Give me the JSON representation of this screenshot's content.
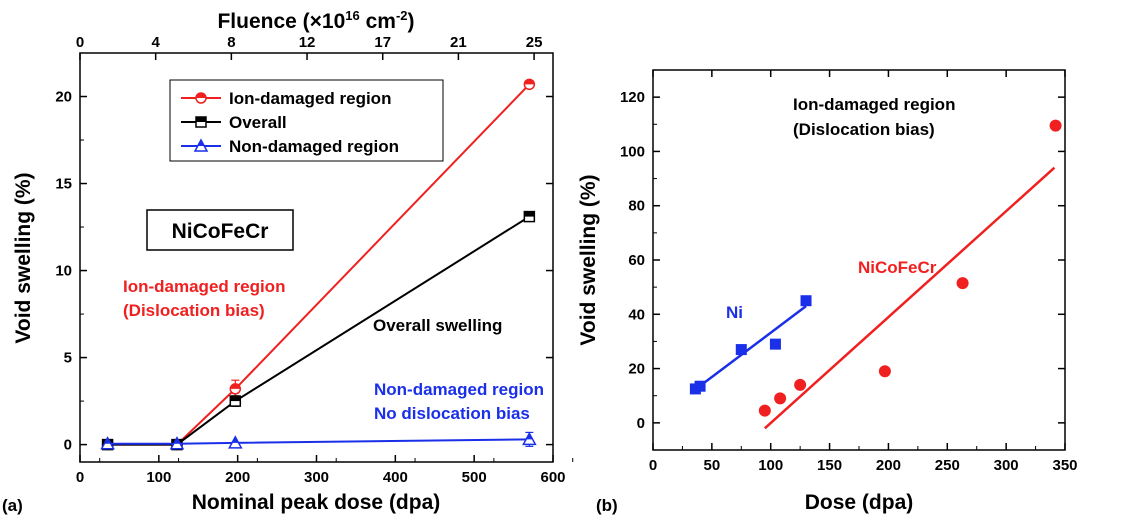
{
  "colors": {
    "red": "#f02020",
    "black": "#000000",
    "blue": "#1a2fe8"
  },
  "panel_labels": {
    "a": "(a)",
    "b": "(b)"
  },
  "chart_data": [
    {
      "panel": "(a)",
      "type": "line",
      "xlabel": "Nominal peak dose (dpa)",
      "ylabel": "Void swelling (%)",
      "top_axis_label": "Fluence (×10¹⁶ cm⁻²)",
      "top_axis_label_parts": {
        "base": "Fluence (×10",
        "exp1": "16",
        "mid": " cm",
        "exp2": "-2",
        "end": ")"
      },
      "xlim": [
        0,
        600
      ],
      "ylim": [
        -1,
        22.5
      ],
      "xticks": [
        0,
        100,
        200,
        300,
        400,
        500,
        600
      ],
      "yticks": [
        0,
        5,
        10,
        15,
        20
      ],
      "top_ticks": [
        {
          "label": "0",
          "at_dose": 0
        },
        {
          "label": "4",
          "at_dose": 96
        },
        {
          "label": "8",
          "at_dose": 192
        },
        {
          "label": "12",
          "at_dose": 288
        },
        {
          "label": "17",
          "at_dose": 384
        },
        {
          "label": "21",
          "at_dose": 480
        },
        {
          "label": "25",
          "at_dose": 576
        }
      ],
      "series": [
        {
          "name": "Ion-damaged region",
          "color": "#f02020",
          "marker": "circle-half",
          "x": [
            35,
            123,
            197,
            570
          ],
          "y": [
            0.0,
            0.0,
            3.2,
            20.7
          ],
          "err": [
            0.2,
            0.2,
            0.5,
            0.2
          ]
        },
        {
          "name": "Overall",
          "color": "#000000",
          "marker": "square-half",
          "x": [
            35,
            123,
            197,
            570
          ],
          "y": [
            0.0,
            0.0,
            2.5,
            13.1
          ],
          "err": [
            0.1,
            0.1,
            0.3,
            0.2
          ]
        },
        {
          "name": "Non-damaged region",
          "color": "#1a2fe8",
          "marker": "triangle-half",
          "x": [
            35,
            123,
            197,
            570
          ],
          "y": [
            0.05,
            0.05,
            0.1,
            0.3
          ],
          "err": [
            0.0,
            0.0,
            0.0,
            0.4
          ]
        }
      ],
      "legend": [
        "Ion-damaged region",
        "Overall",
        "Non-damaged region"
      ],
      "legend_position": "top-center",
      "annotations": {
        "material": "NiCoFeCr",
        "ion_line1": "Ion-damaged region",
        "ion_line2": "(Dislocation bias)",
        "overall": "Overall swelling",
        "non_line1": "Non-damaged region",
        "non_line2": "No dislocation bias"
      }
    },
    {
      "panel": "(b)",
      "type": "scatter",
      "xlabel": "Dose (dpa)",
      "ylabel": "Void  swelling (%)",
      "xlim": [
        0,
        350
      ],
      "ylim": [
        -10,
        130
      ],
      "xticks": [
        0,
        50,
        100,
        150,
        200,
        250,
        300,
        350
      ],
      "yticks": [
        0,
        20,
        40,
        60,
        80,
        100,
        120
      ],
      "series": [
        {
          "name": "Ni",
          "color": "#1a2fe8",
          "marker": "square",
          "x": [
            36,
            40,
            75,
            104,
            130
          ],
          "y": [
            12.5,
            13.5,
            27,
            29,
            45
          ],
          "fit": {
            "x": [
              35,
              130
            ],
            "y": [
              12,
              43
            ]
          }
        },
        {
          "name": "NiCoFeCr",
          "color": "#f02020",
          "marker": "circle",
          "x": [
            95,
            108,
            125,
            197,
            263,
            342
          ],
          "y": [
            4.5,
            9,
            14,
            19,
            51.5,
            109.5
          ],
          "fit": {
            "x": [
              95,
              341
            ],
            "y": [
              -2,
              94
            ]
          }
        }
      ],
      "annotations": {
        "title_line1": "Ion-damaged region",
        "title_line2": "(Dislocation bias)",
        "ni": "Ni",
        "hea": "NiCoFeCr"
      }
    }
  ]
}
